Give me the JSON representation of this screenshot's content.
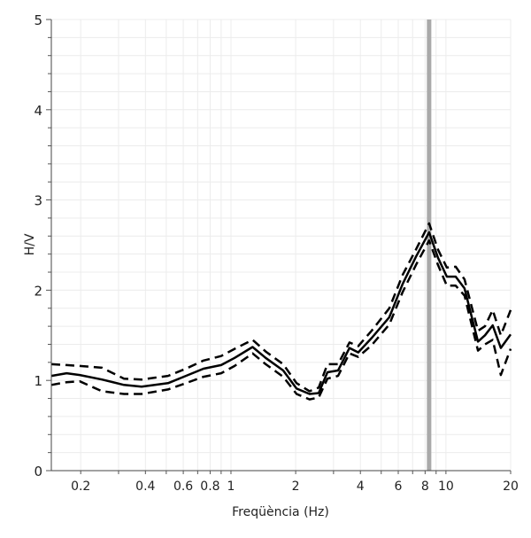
{
  "chart_data": {
    "type": "line",
    "title": "",
    "xlabel": "Freqüència (Hz)",
    "ylabel": "H/V",
    "xscale": "log",
    "xlim": [
      0.146,
      20
    ],
    "ylim": [
      0,
      5
    ],
    "grid": true,
    "x_ticks": [
      0.2,
      0.4,
      0.6,
      0.8,
      1,
      2,
      4,
      6,
      8,
      10,
      20
    ],
    "x_tick_labels": [
      "0.2",
      "0.4",
      "0.6",
      "0.8",
      "1",
      "2",
      "4",
      "6",
      "8",
      "10",
      "20"
    ],
    "y_ticks": [
      0,
      1,
      2,
      3,
      4,
      5
    ],
    "y_tick_labels": [
      "0",
      "1",
      "2",
      "3",
      "4",
      "5"
    ],
    "marker_frequency": 8.35,
    "colors": {
      "mean": "#000000",
      "std": "#000000",
      "marker": "#a9a9a9",
      "grid": "#ececec"
    },
    "x": [
      0.146,
      0.172,
      0.198,
      0.251,
      0.318,
      0.384,
      0.51,
      0.617,
      0.745,
      0.9,
      1.04,
      1.26,
      1.45,
      1.75,
      2.02,
      2.32,
      2.56,
      2.81,
      3.15,
      3.56,
      3.91,
      4.51,
      5.45,
      6.29,
      7.25,
      8.35,
      9.18,
      10.1,
      11.1,
      12.2,
      14.1,
      15.2,
      16.5,
      18.0,
      20
    ],
    "series": [
      {
        "style": "solid",
        "values": [
          1.05,
          1.08,
          1.06,
          1.01,
          0.95,
          0.93,
          0.97,
          1.05,
          1.13,
          1.17,
          1.25,
          1.37,
          1.25,
          1.11,
          0.91,
          0.85,
          0.86,
          1.09,
          1.11,
          1.36,
          1.31,
          1.47,
          1.7,
          2.07,
          2.37,
          2.64,
          2.36,
          2.15,
          2.15,
          2.02,
          1.43,
          1.5,
          1.61,
          1.36,
          1.51
        ]
      },
      {
        "style": "dashed",
        "values": [
          1.18,
          1.17,
          1.16,
          1.14,
          1.02,
          1.01,
          1.05,
          1.13,
          1.22,
          1.27,
          1.35,
          1.45,
          1.32,
          1.18,
          0.97,
          0.88,
          0.92,
          1.18,
          1.18,
          1.42,
          1.38,
          1.55,
          1.8,
          2.17,
          2.45,
          2.74,
          2.45,
          2.25,
          2.26,
          2.12,
          1.55,
          1.6,
          1.78,
          1.5,
          1.78
        ]
      },
      {
        "style": "dashed",
        "values": [
          0.95,
          0.98,
          0.99,
          0.88,
          0.85,
          0.85,
          0.9,
          0.97,
          1.04,
          1.08,
          1.16,
          1.3,
          1.18,
          1.04,
          0.85,
          0.79,
          0.81,
          1.02,
          1.05,
          1.3,
          1.26,
          1.39,
          1.62,
          1.98,
          2.28,
          2.55,
          2.28,
          2.05,
          2.05,
          1.94,
          1.33,
          1.4,
          1.45,
          1.06,
          1.35
        ]
      }
    ]
  }
}
